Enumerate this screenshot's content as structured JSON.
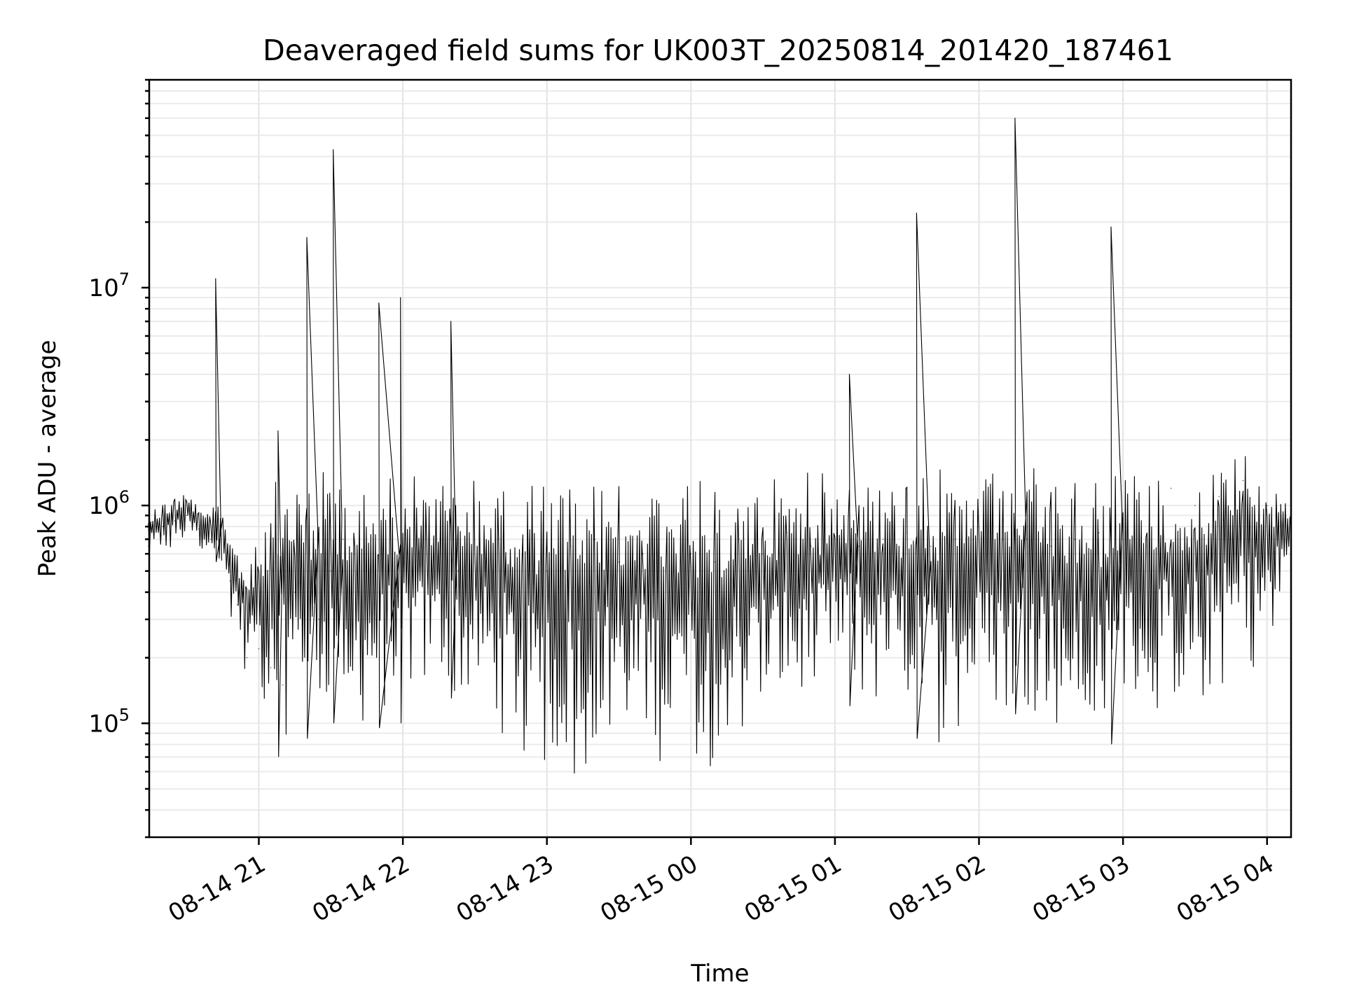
{
  "chart_data": {
    "type": "line",
    "title": "Deaveraged field sums for UK003T_20250814_201420_187461",
    "xlabel": "Time",
    "ylabel": "Peak ADU - average",
    "yscale": "log",
    "ylim": [
      30000,
      90000000
    ],
    "xlim": [
      "2025-08-14 20:14:20",
      "2025-08-15 04:10:00"
    ],
    "grid": true,
    "line_color": "#000000",
    "x_ticks": [
      "08-14 21",
      "08-14 22",
      "08-14 23",
      "08-15 00",
      "08-15 01",
      "08-15 02",
      "08-15 03",
      "08-15 04"
    ],
    "y_ticks": [
      {
        "base": "10",
        "exp": "5",
        "value": 100000
      },
      {
        "base": "10",
        "exp": "6",
        "value": 1000000
      },
      {
        "base": "10",
        "exp": "7",
        "value": 10000000
      }
    ],
    "series": [
      {
        "x": [
          "2025-08-14 20:14",
          "2025-08-14 20:20",
          "2025-08-14 20:25",
          "2025-08-14 20:30",
          "2025-08-14 20:35",
          "2025-08-14 20:40",
          "2025-08-14 20:42",
          "2025-08-14 20:45",
          "2025-08-14 20:48",
          "2025-08-14 20:51",
          "2025-08-14 20:55",
          "2025-08-14 21:00",
          "2025-08-14 21:05",
          "2025-08-14 21:08",
          "2025-08-14 21:10",
          "2025-08-14 21:15",
          "2025-08-14 21:20",
          "2025-08-14 21:25",
          "2025-08-14 21:30",
          "2025-08-14 21:31",
          "2025-08-14 21:35",
          "2025-08-14 21:40",
          "2025-08-14 21:50",
          "2025-08-14 21:59",
          "2025-08-14 22:00",
          "2025-08-14 22:10",
          "2025-08-14 22:20",
          "2025-08-14 22:23",
          "2025-08-14 22:30",
          "2025-08-14 22:40",
          "2025-08-14 22:50",
          "2025-08-14 23:00",
          "2025-08-14 23:10",
          "2025-08-14 23:20",
          "2025-08-14 23:30",
          "2025-08-14 23:40",
          "2025-08-14 23:50",
          "2025-08-15 00:00",
          "2025-08-15 00:10",
          "2025-08-15 00:20",
          "2025-08-15 00:30",
          "2025-08-15 00:40",
          "2025-08-15 00:50",
          "2025-08-15 01:00",
          "2025-08-15 01:06",
          "2025-08-15 01:10",
          "2025-08-15 01:20",
          "2025-08-15 01:30",
          "2025-08-15 01:34",
          "2025-08-15 01:40",
          "2025-08-15 01:50",
          "2025-08-15 02:00",
          "2025-08-15 02:10",
          "2025-08-15 02:15",
          "2025-08-15 02:20",
          "2025-08-15 02:30",
          "2025-08-15 02:40",
          "2025-08-15 02:50",
          "2025-08-15 02:55",
          "2025-08-15 03:00",
          "2025-08-15 03:10",
          "2025-08-15 03:20",
          "2025-08-15 03:30",
          "2025-08-15 03:40",
          "2025-08-15 03:50",
          "2025-08-15 04:00",
          "2025-08-15 04:10"
        ],
        "y": [
          650000,
          800000,
          850000,
          900000,
          780000,
          700000,
          11000000,
          850000,
          450000,
          350000,
          200000,
          220000,
          180000,
          2200000,
          150000,
          400000,
          17000000,
          300000,
          500000,
          43000000,
          700000,
          600000,
          8500000,
          9000000,
          700000,
          600000,
          7000000,
          500000,
          550000,
          700000,
          600000,
          500000,
          650000,
          700000,
          550000,
          600000,
          650000,
          600000,
          550000,
          700000,
          600000,
          750000,
          650000,
          700000,
          4000000,
          650000,
          700000,
          750000,
          22000000,
          650000,
          700000,
          800000,
          700000,
          60000000,
          700000,
          650000,
          700000,
          750000,
          19000000,
          700000,
          650000,
          1200000,
          1000000,
          1100000,
          1300000,
          1000000,
          800000
        ],
        "low": [
          500000,
          550000,
          600000,
          650000,
          600000,
          550000,
          550000,
          400000,
          300000,
          250000,
          150000,
          140000,
          60000,
          70000,
          80000,
          90000,
          85000,
          90000,
          100000,
          100000,
          90000,
          80000,
          95000,
          100000,
          120000,
          110000,
          130000,
          100000,
          100000,
          90000,
          60000,
          55000,
          50000,
          60000,
          70000,
          65000,
          60000,
          55000,
          60000,
          80000,
          90000,
          100000,
          95000,
          110000,
          120000,
          110000,
          100000,
          90000,
          85000,
          70000,
          80000,
          90000,
          100000,
          110000,
          110000,
          90000,
          70000,
          60000,
          80000,
          90000,
          100000,
          110000,
          100000,
          120000,
          160000,
          180000,
          450000
        ],
        "high": [
          1000000,
          1100000,
          1200000,
          1200000,
          1100000,
          1000000,
          1000000,
          1000000,
          900000,
          700000,
          600000,
          900000,
          1300000,
          1400000,
          1500000,
          1500000,
          1500000,
          1500000,
          1500000,
          1500000,
          1500000,
          1500000,
          1500000,
          1500000,
          1500000,
          1500000,
          1500000,
          1500000,
          1500000,
          1500000,
          1500000,
          1500000,
          1450000,
          1450000,
          1400000,
          1500000,
          1500000,
          1400000,
          1300000,
          1400000,
          1400000,
          1500000,
          1500000,
          1500000,
          1600000,
          1500000,
          1500000,
          1500000,
          1500000,
          1500000,
          1500000,
          1500000,
          1500000,
          1500000,
          1500000,
          1500000,
          1500000,
          1500000,
          1500000,
          1500000,
          1500000,
          1500000,
          1600000,
          1800000,
          2000000,
          1600000,
          1200000
        ]
      }
    ]
  }
}
